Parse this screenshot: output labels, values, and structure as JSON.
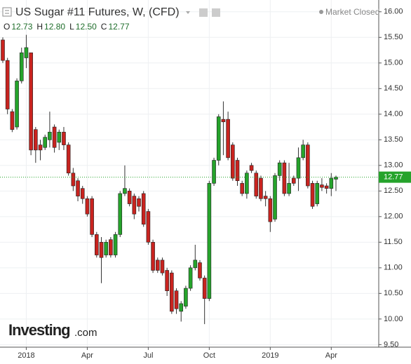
{
  "chart_data": {
    "type": "candlestick",
    "title": "US Sugar #11 Futures, W, (CFD)",
    "status": "Market Closed",
    "ohlc_header": [
      {
        "key": "O",
        "value": "12.73"
      },
      {
        "key": "H",
        "value": "12.80"
      },
      {
        "key": "L",
        "value": "12.50"
      },
      {
        "key": "C",
        "value": "12.77"
      }
    ],
    "logo": "Investing",
    "logo_suffix": ".com",
    "categories": [
      null,
      null,
      null,
      null,
      null,
      "2018",
      null,
      null,
      null,
      null,
      null,
      null,
      null,
      null,
      null,
      null,
      null,
      null,
      "Apr",
      null,
      null,
      null,
      null,
      null,
      null,
      null,
      null,
      null,
      null,
      null,
      null,
      "Jul",
      null,
      null,
      null,
      null,
      null,
      null,
      null,
      null,
      null,
      null,
      null,
      null,
      "Oct",
      null,
      null,
      null,
      null,
      null,
      null,
      null,
      null,
      null,
      null,
      null,
      null,
      "2019",
      null,
      null,
      null,
      null,
      null,
      null,
      null,
      null,
      null,
      null,
      null,
      null,
      "Apr",
      null
    ],
    "open": [
      15.45,
      15.05,
      14.05,
      13.75,
      14.65,
      15.1,
      15.2,
      13.7,
      13.4,
      13.35,
      13.5,
      13.75,
      13.45,
      13.65,
      13.4,
      12.85,
      12.7,
      12.55,
      12.35,
      12.35,
      11.65,
      11.5,
      11.25,
      11.55,
      11.25,
      11.65,
      12.45,
      12.5,
      12.4,
      12.35,
      12.45,
      12.1,
      11.5,
      11.15,
      11.15,
      10.95,
      10.9,
      10.55,
      10.15,
      10.25,
      10.6,
      11.0,
      11.1,
      10.8,
      10.4,
      12.65,
      13.1,
      13.9,
      13.9,
      13.4,
      13.1,
      12.65,
      12.45,
      13.0,
      12.85,
      12.75,
      12.4,
      12.35,
      11.95,
      12.8,
      13.05,
      12.45,
      12.75,
      12.75,
      13.15,
      13.4,
      12.65,
      12.25,
      12.62,
      12.6,
      12.55,
      12.73
    ],
    "high": [
      15.5,
      15.1,
      14.1,
      14.7,
      15.3,
      15.55,
      15.2,
      13.75,
      13.5,
      13.6,
      14.05,
      13.8,
      13.7,
      13.75,
      13.45,
      12.95,
      12.75,
      12.6,
      12.4,
      12.4,
      11.7,
      11.6,
      11.55,
      11.6,
      11.7,
      12.5,
      13.0,
      12.55,
      12.45,
      12.4,
      12.5,
      12.15,
      11.55,
      11.2,
      11.2,
      11.0,
      10.95,
      10.6,
      10.35,
      10.65,
      11.05,
      11.45,
      11.15,
      10.85,
      12.7,
      13.15,
      14.0,
      14.25,
      14.05,
      13.45,
      13.15,
      12.7,
      12.9,
      13.05,
      12.9,
      12.8,
      12.5,
      12.4,
      12.85,
      13.1,
      13.1,
      13.05,
      12.8,
      13.35,
      13.5,
      13.45,
      12.7,
      12.7,
      12.75,
      12.65,
      12.85,
      12.8
    ],
    "low": [
      15.0,
      14.0,
      13.65,
      13.7,
      14.6,
      14.9,
      13.2,
      13.05,
      13.1,
      13.3,
      13.35,
      13.25,
      13.3,
      13.3,
      12.8,
      12.5,
      12.3,
      12.25,
      12.0,
      11.6,
      11.2,
      10.7,
      11.2,
      11.2,
      11.2,
      11.6,
      12.4,
      12.2,
      11.95,
      12.1,
      11.8,
      11.45,
      10.9,
      10.9,
      10.85,
      10.45,
      10.1,
      10.1,
      9.95,
      10.2,
      10.55,
      10.95,
      10.75,
      9.9,
      10.35,
      12.6,
      13.0,
      13.2,
      13.1,
      12.7,
      12.6,
      12.4,
      12.35,
      12.85,
      12.35,
      12.3,
      12.2,
      11.7,
      11.9,
      12.7,
      12.4,
      12.4,
      12.6,
      12.5,
      13.1,
      12.55,
      12.15,
      12.2,
      12.5,
      12.45,
      12.4,
      12.5
    ],
    "close": [
      15.05,
      14.1,
      13.7,
      14.65,
      15.2,
      15.3,
      13.3,
      13.3,
      13.3,
      13.55,
      13.65,
      13.35,
      13.65,
      13.4,
      12.85,
      12.6,
      12.4,
      12.35,
      12.05,
      11.65,
      11.25,
      11.2,
      11.5,
      11.25,
      11.65,
      12.45,
      12.55,
      12.25,
      12.05,
      12.2,
      11.85,
      11.5,
      10.95,
      10.95,
      10.9,
      10.55,
      10.15,
      10.2,
      10.3,
      10.6,
      11.0,
      11.15,
      10.8,
      10.4,
      12.65,
      13.1,
      13.95,
      13.85,
      13.15,
      12.75,
      12.7,
      12.45,
      12.85,
      12.9,
      12.4,
      12.35,
      12.35,
      11.9,
      12.8,
      13.05,
      12.45,
      12.65,
      12.65,
      13.15,
      13.4,
      12.6,
      12.2,
      12.65,
      12.57,
      12.55,
      12.75,
      12.77
    ],
    "up_color": "#25a32b",
    "down_color": "#c8231f",
    "last_price": {
      "value": 12.77,
      "label": "12.77"
    },
    "ylim": [
      9.45,
      16.23
    ],
    "yticks": [
      {
        "value": 16,
        "label": "16.00"
      },
      {
        "value": 15.5,
        "label": "15.50"
      },
      {
        "value": 15,
        "label": "15.00"
      },
      {
        "value": 14.5,
        "label": "14.50"
      },
      {
        "value": 14,
        "label": "14.00"
      },
      {
        "value": 13.5,
        "label": "13.50"
      },
      {
        "value": 13,
        "label": "13.00"
      },
      {
        "value": 12.5,
        "label": "12.50"
      },
      {
        "value": 12,
        "label": "12.00"
      },
      {
        "value": 11.5,
        "label": "11.50"
      },
      {
        "value": 11,
        "label": "11.00"
      },
      {
        "value": 10.5,
        "label": "10.50"
      },
      {
        "value": 10,
        "label": "10.00"
      },
      {
        "value": 9.5,
        "label": "9.50"
      }
    ],
    "grid": true
  }
}
